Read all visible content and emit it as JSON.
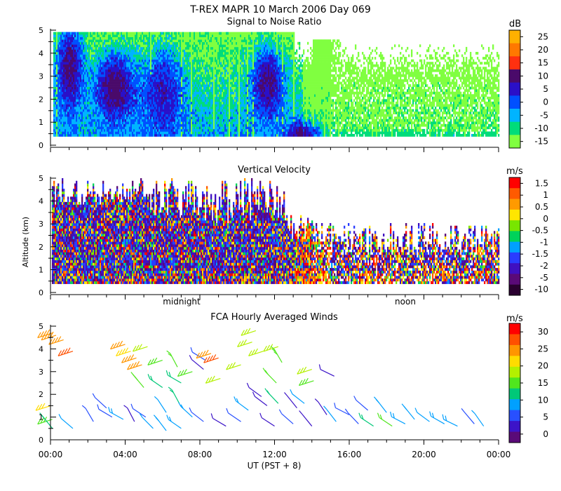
{
  "title": "T-REX  MAPR 10 March 2006 Day 069",
  "shared_y_label": "Altitude (km)",
  "x_axis": {
    "label": "UT  (PST + 8)",
    "range_hours": [
      0,
      24
    ],
    "tick_labels": [
      "00:00",
      "04:00",
      "08:00",
      "12:00",
      "16:00",
      "20:00",
      "00:00"
    ],
    "local_labels": [
      {
        "text": "midnight",
        "hour": 8
      },
      {
        "text": "noon",
        "hour": 20
      }
    ]
  },
  "chart_data": [
    {
      "type": "heatmap",
      "title": "Signal to Noise Ratio",
      "ylabel": "Altitude (km)",
      "ylim": [
        0,
        5
      ],
      "yticks": [
        "0",
        "1",
        "2",
        "3",
        "4",
        "5"
      ],
      "colorbar": {
        "unit": "dB",
        "labels": [
          "25",
          "20",
          "15",
          "10",
          "5",
          "0",
          "-5",
          "-10",
          "-15"
        ],
        "colors": [
          "#ffb000",
          "#ff7800",
          "#ff3010",
          "#4a0a6a",
          "#2a10c8",
          "#0050ff",
          "#00b4ff",
          "#00dc7a",
          "#80ff40"
        ]
      },
      "description_series": [
        {
          "name": "strong echo regions (dB)",
          "x_hours": [
            1.0,
            3.2,
            6.0,
            11.7,
            13.6
          ],
          "altitude_km": [
            3.5,
            2.5,
            2.5,
            2.8,
            0.5
          ],
          "value": [
            10,
            10,
            5,
            10,
            10
          ]
        }
      ]
    },
    {
      "type": "heatmap",
      "title": "Vertical Velocity",
      "ylabel": "Altitude (km)",
      "ylim": [
        0,
        5
      ],
      "yticks": [
        "0",
        "1",
        "2",
        "3",
        "4",
        "5"
      ],
      "colorbar": {
        "unit": "m/s",
        "labels": [
          "1.5",
          "1",
          "0.5",
          "0",
          "-0.5",
          "-1",
          "-1.5",
          "-2",
          "-5",
          "-10"
        ],
        "colors": [
          "#ff0000",
          "#ff5a00",
          "#ff9a00",
          "#ffe600",
          "#78e600",
          "#00d25a",
          "#00a0ff",
          "#2a3cff",
          "#4010c0",
          "#5a0a78",
          "#2a0030"
        ]
      }
    },
    {
      "type": "scatter",
      "title": "FCA Hourly Averaged Winds",
      "ylabel": "Altitude (km)",
      "ylim": [
        0,
        5
      ],
      "yticks": [
        "0",
        "1",
        "2",
        "3",
        "4",
        "5"
      ],
      "colorbar": {
        "unit": "m/s",
        "labels": [
          "30",
          "25",
          "20",
          "15",
          "10",
          "5",
          "0"
        ],
        "colors": [
          "#ff0000",
          "#ff5000",
          "#ff9600",
          "#ffdc00",
          "#b4f000",
          "#50e61e",
          "#00c878",
          "#00a0ff",
          "#2850ff",
          "#3c14c8",
          "#5a0a78"
        ]
      },
      "series": [
        {
          "name": "wind barbs (hour, altitude km, speed m/s)",
          "barbs": [
            [
              0.1,
              4.7,
              24
            ],
            [
              0.3,
              4.6,
              24
            ],
            [
              0.7,
              4.4,
              25
            ],
            [
              1.2,
              3.9,
              27
            ],
            [
              0.0,
              1.5,
              20
            ],
            [
              0.1,
              0.9,
              16
            ],
            [
              0.1,
              0.5,
              12
            ],
            [
              1.2,
              0.5,
              8
            ],
            [
              2.3,
              0.8,
              5
            ],
            [
              3.0,
              1.4,
              6
            ],
            [
              3.3,
              1.0,
              6
            ],
            [
              3.9,
              0.9,
              9
            ],
            [
              4.0,
              4.2,
              24
            ],
            [
              4.3,
              3.9,
              22
            ],
            [
              4.6,
              3.6,
              25
            ],
            [
              4.5,
              0.8,
              4
            ],
            [
              4.9,
              3.3,
              23
            ],
            [
              5.2,
              4.1,
              17
            ],
            [
              5.0,
              2.3,
              15
            ],
            [
              5.1,
              1.0,
              5
            ],
            [
              5.5,
              0.5,
              8
            ],
            [
              6.0,
              3.5,
              16
            ],
            [
              6.0,
              2.3,
              12
            ],
            [
              6.2,
              1.2,
              8
            ],
            [
              6.2,
              0.4,
              10
            ],
            [
              6.8,
              3.2,
              14
            ],
            [
              7.0,
              2.5,
              13
            ],
            [
              6.9,
              1.6,
              12
            ],
            [
              7.0,
              0.5,
              10
            ],
            [
              7.6,
              3.0,
              16
            ],
            [
              7.6,
              1.0,
              9
            ],
            [
              8.2,
              3.1,
              3
            ],
            [
              8.3,
              3.5,
              5
            ],
            [
              8.6,
              3.8,
              24
            ],
            [
              8.2,
              0.8,
              5
            ],
            [
              9.0,
              3.6,
              27
            ],
            [
              9.1,
              2.7,
              19
            ],
            [
              9.4,
              0.6,
              2
            ],
            [
              10.2,
              0.8,
              6
            ],
            [
              10.2,
              3.3,
              18
            ],
            [
              10.6,
              1.3,
              9
            ],
            [
              10.8,
              4.3,
              19
            ],
            [
              11.0,
              4.8,
              18
            ],
            [
              11.4,
              3.9,
              17
            ],
            [
              11.3,
              1.9,
              3
            ],
            [
              11.6,
              1.5,
              2
            ],
            [
              12.0,
              0.6,
              4
            ],
            [
              12.2,
              4.1,
              17
            ],
            [
              12.4,
              3.4,
              15
            ],
            [
              12.1,
              2.5,
              14
            ],
            [
              12.2,
              1.6,
              11
            ],
            [
              13.0,
              0.7,
              5
            ],
            [
              13.2,
              1.4,
              4
            ],
            [
              13.6,
              1.6,
              8
            ],
            [
              14.0,
              3.1,
              18
            ],
            [
              14.1,
              2.6,
              16
            ],
            [
              14.0,
              0.6,
              3
            ],
            [
              14.8,
              1.1,
              4
            ],
            [
              15.2,
              2.8,
              3
            ],
            [
              15.3,
              0.8,
              8
            ],
            [
              16.0,
              1.1,
              5
            ],
            [
              16.5,
              0.7,
              5
            ],
            [
              17.0,
              1.3,
              6
            ],
            [
              17.3,
              0.6,
              13
            ],
            [
              18.0,
              1.2,
              10
            ],
            [
              18.3,
              0.6,
              14
            ],
            [
              19.0,
              0.7,
              10
            ],
            [
              19.5,
              0.9,
              9
            ],
            [
              20.3,
              0.8,
              8
            ],
            [
              21.1,
              0.7,
              9
            ],
            [
              21.8,
              0.6,
              10
            ],
            [
              22.7,
              0.7,
              7
            ],
            [
              23.2,
              0.6,
              8
            ]
          ]
        }
      ]
    }
  ]
}
